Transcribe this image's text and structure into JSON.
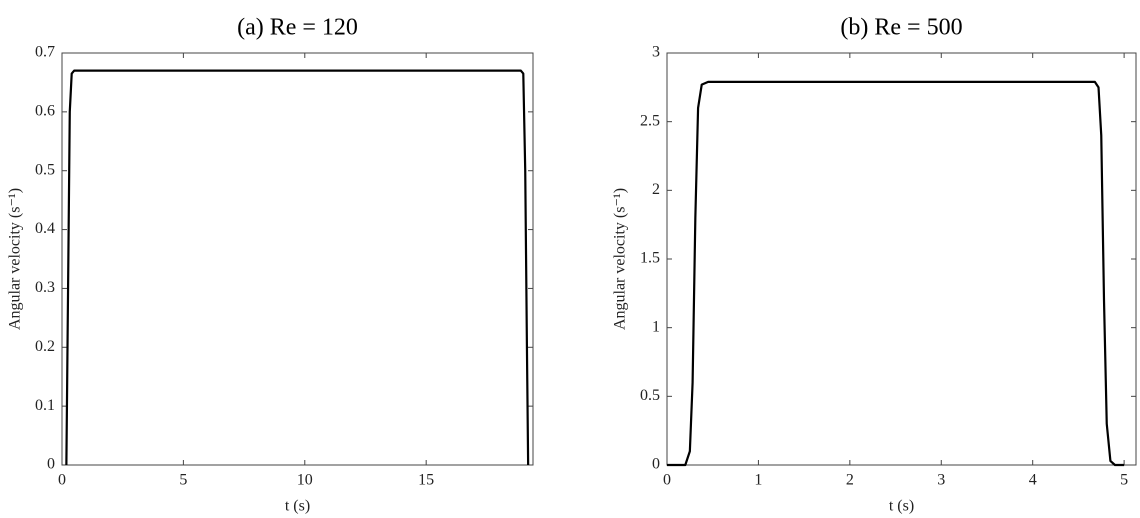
{
  "chart_data": [
    {
      "type": "line",
      "title": "(a) Re = 120",
      "x_label": "t (s)",
      "y_label": "Angular velocity (s⁻¹)",
      "color": "#000000",
      "x": [
        0.18,
        0.25,
        0.32,
        0.4,
        0.5,
        18.9,
        19.0,
        19.08,
        19.15,
        19.2
      ],
      "values": [
        0,
        0.3,
        0.6,
        0.665,
        0.67,
        0.67,
        0.665,
        0.5,
        0.2,
        0
      ],
      "xlim": [
        0,
        19.4
      ],
      "xticks": [
        0,
        5,
        10,
        15
      ],
      "ylim": [
        0,
        0.7
      ],
      "yticks": [
        0,
        0.1,
        0.2,
        0.3,
        0.4,
        0.5,
        0.6,
        0.7
      ]
    },
    {
      "type": "line",
      "title": "(b) Re = 500",
      "x_label": "t (s)",
      "y_label": "Angular velocity (s⁻¹)",
      "color": "#000000",
      "x": [
        0,
        0.2,
        0.25,
        0.28,
        0.31,
        0.34,
        0.38,
        0.45,
        4.68,
        4.72,
        4.75,
        4.78,
        4.81,
        4.85,
        4.9,
        5.0
      ],
      "values": [
        0,
        0,
        0.1,
        0.6,
        1.8,
        2.6,
        2.77,
        2.79,
        2.79,
        2.75,
        2.4,
        1.2,
        0.3,
        0.03,
        0,
        0
      ],
      "xlim": [
        0,
        5.13
      ],
      "xticks": [
        0,
        1,
        2,
        3,
        4,
        5
      ],
      "ylim": [
        0,
        3
      ],
      "yticks": [
        0,
        0.5,
        1,
        1.5,
        2,
        2.5,
        3
      ]
    }
  ]
}
